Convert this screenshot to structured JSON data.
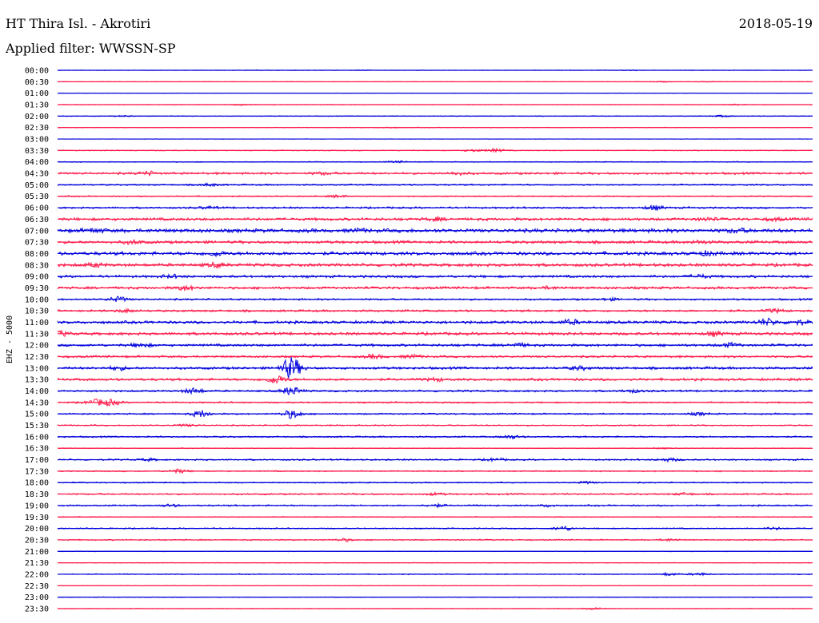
{
  "header": {
    "title": "HT Thira Isl. - Akrotiri",
    "date": "2018-05-19",
    "filter": "Applied filter: WWSSN-SP"
  },
  "chart_data": {
    "type": "line",
    "ylabel": "EHZ - 5000",
    "colors": [
      "#0000dd",
      "#ff1a4a"
    ],
    "rows": [
      {
        "label": "00:00",
        "activity": 0.1,
        "events": [
          [
            76,
            0.15
          ],
          [
            40,
            0.1
          ]
        ]
      },
      {
        "label": "00:30",
        "activity": 0.08,
        "events": [
          [
            80,
            0.2
          ],
          [
            86,
            0.15
          ]
        ]
      },
      {
        "label": "01:00",
        "activity": 0.08,
        "events": []
      },
      {
        "label": "01:30",
        "activity": 0.1,
        "events": [
          [
            24,
            0.2
          ],
          [
            90,
            0.25
          ]
        ]
      },
      {
        "label": "02:00",
        "activity": 0.12,
        "events": [
          [
            9,
            0.2
          ],
          [
            88,
            0.3
          ]
        ]
      },
      {
        "label": "02:30",
        "activity": 0.1,
        "events": [
          [
            44,
            0.2
          ]
        ]
      },
      {
        "label": "03:00",
        "activity": 0.06,
        "events": []
      },
      {
        "label": "03:30",
        "activity": 0.15,
        "events": [
          [
            55,
            0.4
          ],
          [
            58,
            0.6
          ]
        ]
      },
      {
        "label": "04:00",
        "activity": 0.15,
        "events": [
          [
            45,
            0.3
          ]
        ]
      },
      {
        "label": "04:30",
        "activity": 0.35,
        "events": [
          [
            12,
            0.6
          ],
          [
            35,
            0.4
          ],
          [
            53,
            0.5
          ]
        ]
      },
      {
        "label": "05:00",
        "activity": 0.25,
        "events": [
          [
            20,
            0.4
          ]
        ]
      },
      {
        "label": "05:30",
        "activity": 0.2,
        "events": [
          [
            37,
            0.4
          ]
        ]
      },
      {
        "label": "06:00",
        "activity": 0.3,
        "events": [
          [
            79,
            0.8
          ],
          [
            20,
            0.4
          ]
        ]
      },
      {
        "label": "06:30",
        "activity": 0.45,
        "events": [
          [
            50,
            0.5
          ],
          [
            86,
            0.5
          ],
          [
            95,
            0.4
          ]
        ]
      },
      {
        "label": "07:00",
        "activity": 0.6,
        "events": [
          [
            5,
            0.6
          ],
          [
            40,
            0.4
          ],
          [
            90,
            0.6
          ]
        ]
      },
      {
        "label": "07:30",
        "activity": 0.45,
        "events": [
          [
            10,
            0.6
          ],
          [
            85,
            0.5
          ]
        ]
      },
      {
        "label": "08:00",
        "activity": 0.55,
        "events": [
          [
            21,
            0.7
          ],
          [
            86,
            0.6
          ]
        ]
      },
      {
        "label": "08:30",
        "activity": 0.5,
        "events": [
          [
            5,
            0.6
          ],
          [
            21,
            0.6
          ]
        ]
      },
      {
        "label": "09:00",
        "activity": 0.4,
        "events": [
          [
            15,
            0.5
          ],
          [
            85,
            0.6
          ]
        ]
      },
      {
        "label": "09:30",
        "activity": 0.4,
        "events": [
          [
            17,
            0.8
          ],
          [
            65,
            0.4
          ]
        ]
      },
      {
        "label": "10:00",
        "activity": 0.3,
        "events": [
          [
            8,
            0.9
          ],
          [
            73,
            0.4
          ]
        ]
      },
      {
        "label": "10:30",
        "activity": 0.35,
        "events": [
          [
            9,
            0.5
          ],
          [
            95,
            0.6
          ]
        ]
      },
      {
        "label": "11:00",
        "activity": 0.45,
        "events": [
          [
            68,
            0.8
          ],
          [
            94,
            1.1
          ],
          [
            98,
            0.7
          ]
        ]
      },
      {
        "label": "11:30",
        "activity": 0.45,
        "events": [
          [
            0,
            0.9
          ],
          [
            87,
            0.7
          ]
        ]
      },
      {
        "label": "12:00",
        "activity": 0.4,
        "events": [
          [
            11,
            0.7
          ],
          [
            61,
            0.6
          ],
          [
            89,
            0.7
          ]
        ]
      },
      {
        "label": "12:30",
        "activity": 0.35,
        "events": [
          [
            42,
            0.7
          ],
          [
            47,
            0.6
          ]
        ]
      },
      {
        "label": "13:00",
        "activity": 0.4,
        "events": [
          [
            8,
            0.6
          ],
          [
            31,
            4.0
          ],
          [
            69,
            0.6
          ]
        ]
      },
      {
        "label": "13:30",
        "activity": 0.4,
        "events": [
          [
            29,
            1.5
          ],
          [
            50,
            0.5
          ]
        ]
      },
      {
        "label": "14:00",
        "activity": 0.3,
        "events": [
          [
            18,
            1.0
          ],
          [
            31,
            1.5
          ],
          [
            76,
            0.5
          ]
        ]
      },
      {
        "label": "14:30",
        "activity": 0.25,
        "events": [
          [
            5,
            1.0
          ],
          [
            7,
            1.1
          ]
        ]
      },
      {
        "label": "15:00",
        "activity": 0.25,
        "events": [
          [
            19,
            1.2
          ],
          [
            31,
            1.6
          ],
          [
            85,
            0.5
          ]
        ]
      },
      {
        "label": "15:30",
        "activity": 0.2,
        "events": [
          [
            17,
            0.4
          ]
        ]
      },
      {
        "label": "16:00",
        "activity": 0.25,
        "events": [
          [
            60,
            0.6
          ]
        ]
      },
      {
        "label": "16:30",
        "activity": 0.12,
        "events": [
          [
            80,
            0.2
          ]
        ]
      },
      {
        "label": "17:00",
        "activity": 0.25,
        "events": [
          [
            12,
            0.4
          ],
          [
            58,
            0.5
          ],
          [
            81,
            0.6
          ]
        ]
      },
      {
        "label": "17:30",
        "activity": 0.2,
        "events": [
          [
            16,
            0.7
          ]
        ]
      },
      {
        "label": "18:00",
        "activity": 0.2,
        "events": [
          [
            70,
            0.4
          ]
        ]
      },
      {
        "label": "18:30",
        "activity": 0.25,
        "events": [
          [
            50,
            0.4
          ],
          [
            83,
            0.4
          ]
        ]
      },
      {
        "label": "19:00",
        "activity": 0.25,
        "events": [
          [
            15,
            0.4
          ],
          [
            50,
            0.5
          ],
          [
            65,
            0.4
          ]
        ]
      },
      {
        "label": "19:30",
        "activity": 0.15,
        "events": []
      },
      {
        "label": "20:00",
        "activity": 0.2,
        "events": [
          [
            67,
            0.8
          ],
          [
            95,
            0.4
          ]
        ]
      },
      {
        "label": "20:30",
        "activity": 0.2,
        "events": [
          [
            38,
            0.5
          ],
          [
            81,
            0.4
          ]
        ]
      },
      {
        "label": "21:00",
        "activity": 0.1,
        "events": []
      },
      {
        "label": "21:30",
        "activity": 0.1,
        "events": []
      },
      {
        "label": "22:00",
        "activity": 0.15,
        "events": [
          [
            81,
            0.5
          ],
          [
            85,
            0.5
          ]
        ]
      },
      {
        "label": "22:30",
        "activity": 0.1,
        "events": []
      },
      {
        "label": "23:00",
        "activity": 0.1,
        "events": []
      },
      {
        "label": "23:30",
        "activity": 0.1,
        "events": [
          [
            71,
            0.5
          ]
        ]
      }
    ]
  }
}
